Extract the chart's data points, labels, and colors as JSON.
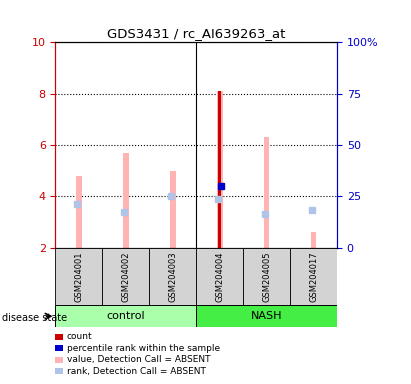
{
  "title": "GDS3431 / rc_AI639263_at",
  "samples": [
    "GSM204001",
    "GSM204002",
    "GSM204003",
    "GSM204004",
    "GSM204005",
    "GSM204017"
  ],
  "ylim_left": [
    2,
    10
  ],
  "ylim_right": [
    0,
    100
  ],
  "yticks_left": [
    2,
    4,
    6,
    8,
    10
  ],
  "yticks_right": [
    0,
    25,
    50,
    75,
    100
  ],
  "yticklabels_right": [
    "0",
    "25",
    "50",
    "75",
    "100%"
  ],
  "value_absent": [
    4.8,
    5.7,
    5.0,
    8.1,
    6.3,
    2.6
  ],
  "rank_absent": [
    3.7,
    3.4,
    4.0,
    3.9,
    3.3,
    3.45
  ],
  "rank_absent_idx": [
    0,
    1,
    2,
    3,
    4,
    5
  ],
  "count_val": 8.1,
  "count_idx": 3,
  "percentile_val": 4.4,
  "percentile_idx": 3,
  "color_value_absent": "#ffb3b3",
  "color_rank_absent": "#b0c4e8",
  "color_count": "#cc0000",
  "color_percentile": "#0000cc",
  "color_control": "#aaffaa",
  "color_nash": "#44ee44",
  "control_label": "control",
  "nash_label": "NASH",
  "disease_state_label": "disease state",
  "legend_items": [
    {
      "label": "count",
      "color": "#cc0000"
    },
    {
      "label": "percentile rank within the sample",
      "color": "#0000cc"
    },
    {
      "label": "value, Detection Call = ABSENT",
      "color": "#ffb3b3"
    },
    {
      "label": "rank, Detection Call = ABSENT",
      "color": "#b0c4e8"
    }
  ],
  "left_axis_color": "#cc0000",
  "right_axis_color": "#0000cc",
  "grid_yticks": [
    4,
    6,
    8,
    10
  ],
  "bar_base": 2,
  "value_bar_width": 0.12,
  "count_bar_width": 0.06,
  "percentile_bar_width": 0.04
}
